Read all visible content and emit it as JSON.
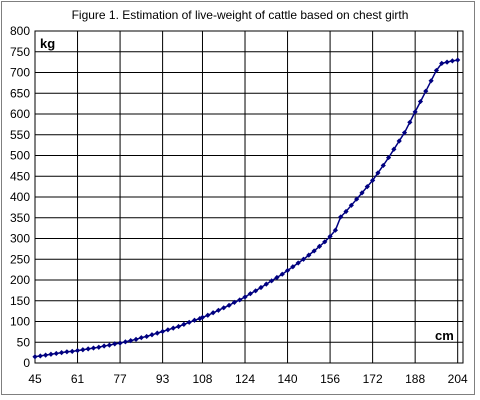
{
  "chart_data": {
    "type": "line",
    "title": "Figure 1. Estimation of live-weight of cattle based on chest girth",
    "xlabel": "cm",
    "ylabel": "kg",
    "xlim": [
      45,
      206
    ],
    "ylim": [
      0,
      800
    ],
    "xticks": [
      45,
      61,
      77,
      93,
      108,
      124,
      140,
      156,
      172,
      188,
      204
    ],
    "yticks": [
      0,
      50,
      100,
      150,
      200,
      250,
      300,
      350,
      400,
      450,
      500,
      550,
      600,
      650,
      700,
      750,
      800
    ],
    "grid": true,
    "legend": "none",
    "series": [
      {
        "color": "#000080",
        "marker": "diamond",
        "x": [
          45,
          47,
          49,
          51,
          53,
          55,
          57,
          59,
          61,
          63,
          65,
          67,
          69,
          71,
          73,
          75,
          77,
          79,
          81,
          83,
          85,
          87,
          89,
          91,
          93,
          95,
          97,
          99,
          101,
          103,
          105,
          107,
          108,
          110,
          112,
          114,
          116,
          118,
          120,
          122,
          124,
          126,
          128,
          130,
          132,
          134,
          136,
          138,
          140,
          142,
          144,
          146,
          148,
          150,
          152,
          154,
          156,
          158,
          160,
          162,
          164,
          166,
          168,
          170,
          172,
          174,
          176,
          178,
          180,
          182,
          184,
          186,
          188,
          190,
          192,
          194,
          196,
          198,
          200,
          202,
          204
        ],
        "y": [
          15,
          17,
          19,
          21,
          23,
          25,
          27,
          28,
          30,
          32,
          34,
          36,
          38,
          41,
          43,
          46,
          48,
          51,
          54,
          57,
          61,
          64,
          68,
          72,
          76,
          80,
          84,
          88,
          93,
          98,
          103,
          107,
          110,
          115,
          121,
          127,
          133,
          139,
          146,
          152,
          159,
          167,
          174,
          182,
          190,
          198,
          206,
          214,
          223,
          232,
          241,
          250,
          260,
          270,
          281,
          292,
          305,
          320,
          352,
          365,
          380,
          395,
          410,
          425,
          440,
          458,
          476,
          495,
          515,
          535,
          555,
          580,
          605,
          630,
          655,
          680,
          705,
          722,
          725,
          728,
          730
        ]
      }
    ]
  }
}
